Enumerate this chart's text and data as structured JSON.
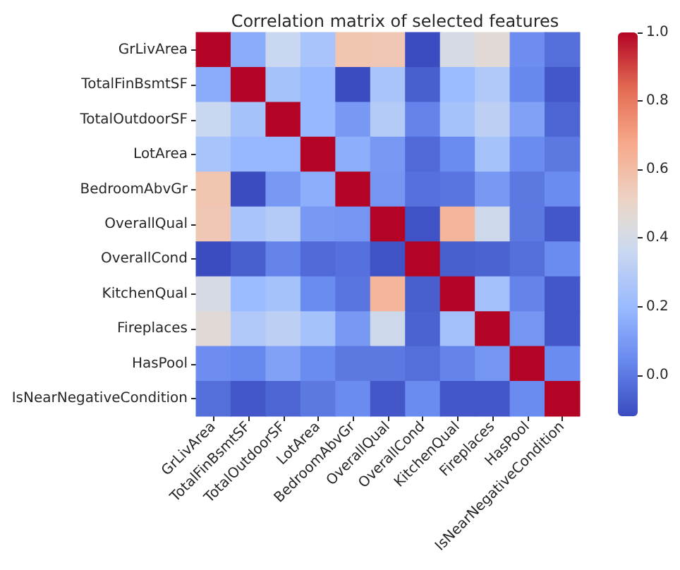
{
  "chart_data": {
    "type": "heatmap",
    "title": "Correlation matrix of selected features",
    "categories": [
      "GrLivArea",
      "TotalFinBsmtSF",
      "TotalOutdoorSF",
      "LotArea",
      "BedroomAbvGr",
      "OverallQual",
      "OverallCond",
      "KitchenQual",
      "Fireplaces",
      "HasPool",
      "IsNearNegativeCondition"
    ],
    "y_categories": [
      "GrLivArea",
      "TotalFinBsmtSF",
      "TotalOutdoorSF",
      "LotArea",
      "BedroomAbvGr",
      "OverallQual",
      "OverallCond",
      "KitchenQual",
      "Fireplaces",
      "HasPool",
      "IsNearNegativeCondition"
    ],
    "cells": [
      [
        1.0,
        0.15,
        0.36,
        0.25,
        0.57,
        0.56,
        -0.12,
        0.41,
        0.46,
        0.06,
        -0.03
      ],
      [
        0.15,
        1.0,
        0.24,
        0.19,
        -0.12,
        0.25,
        -0.07,
        0.2,
        0.28,
        0.04,
        -0.09
      ],
      [
        0.36,
        0.24,
        1.0,
        0.19,
        0.09,
        0.29,
        0.03,
        0.24,
        0.32,
        0.12,
        -0.05
      ],
      [
        0.25,
        0.19,
        0.19,
        1.0,
        0.16,
        0.09,
        -0.04,
        0.05,
        0.24,
        0.05,
        0.0
      ],
      [
        0.57,
        -0.12,
        0.09,
        0.16,
        1.0,
        0.08,
        -0.02,
        -0.01,
        0.09,
        0.0,
        0.05
      ],
      [
        0.56,
        0.25,
        0.29,
        0.09,
        0.08,
        1.0,
        -0.1,
        0.63,
        0.38,
        0.0,
        -0.09
      ],
      [
        -0.12,
        -0.07,
        0.03,
        -0.04,
        -0.02,
        -0.1,
        1.0,
        -0.07,
        -0.06,
        -0.03,
        0.05
      ],
      [
        0.41,
        0.2,
        0.24,
        0.05,
        -0.01,
        0.63,
        -0.07,
        1.0,
        0.23,
        0.03,
        -0.09
      ],
      [
        0.46,
        0.28,
        0.32,
        0.24,
        0.09,
        0.38,
        -0.06,
        0.23,
        1.0,
        0.08,
        -0.09
      ],
      [
        0.06,
        0.04,
        0.12,
        0.05,
        0.0,
        0.0,
        -0.03,
        0.03,
        0.08,
        1.0,
        0.05
      ],
      [
        -0.03,
        -0.09,
        -0.05,
        0.0,
        0.05,
        -0.09,
        0.05,
        -0.09,
        -0.09,
        0.05,
        1.0
      ]
    ],
    "clim": [
      -0.12,
      1.0
    ],
    "cticks": [
      {
        "value": 0,
        "label": "0.0"
      },
      0.2,
      0.4,
      0.6,
      0.8,
      {
        "value": 1,
        "label": "1.0"
      }
    ]
  }
}
